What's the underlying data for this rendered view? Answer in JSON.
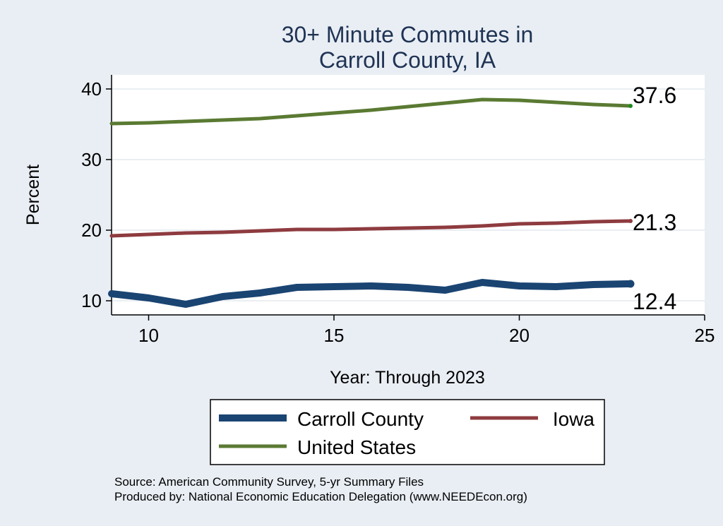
{
  "chart_data": {
    "type": "line",
    "title": [
      "30+ Minute Commutes in",
      "Carroll County, IA"
    ],
    "xlabel": "Year: Through 2023",
    "ylabel": "Percent",
    "xlim": [
      9,
      25
    ],
    "ylim": [
      8,
      42
    ],
    "xticks": [
      10,
      15,
      20,
      25
    ],
    "yticks": [
      10,
      20,
      30,
      40
    ],
    "grid": true,
    "legend_position": "bottom",
    "x": [
      9,
      10,
      11,
      12,
      13,
      14,
      15,
      16,
      17,
      18,
      19,
      20,
      21,
      22,
      23
    ],
    "series": [
      {
        "name": "Carroll County",
        "color": "#1a4472",
        "values": [
          11.0,
          10.4,
          9.5,
          10.6,
          11.1,
          11.9,
          12.0,
          12.1,
          11.9,
          11.5,
          12.6,
          12.1,
          12.0,
          12.3,
          12.4
        ],
        "end_label": "12.4"
      },
      {
        "name": "Iowa",
        "color": "#8e3b3f",
        "values": [
          19.2,
          19.4,
          19.6,
          19.7,
          19.9,
          20.1,
          20.1,
          20.2,
          20.3,
          20.4,
          20.6,
          20.9,
          21.0,
          21.2,
          21.3
        ],
        "end_label": "21.3"
      },
      {
        "name": "United States",
        "color": "#5a7a32",
        "values": [
          35.1,
          35.2,
          35.4,
          35.6,
          35.8,
          36.2,
          36.6,
          37.0,
          37.5,
          38.0,
          38.5,
          38.4,
          38.1,
          37.8,
          37.6
        ],
        "end_label": "37.6"
      }
    ]
  },
  "notes": [
    "Source: American Community Survey, 5-yr Summary Files",
    "Produced by: National Economic Education Delegation (www.NEEDEcon.org)"
  ]
}
